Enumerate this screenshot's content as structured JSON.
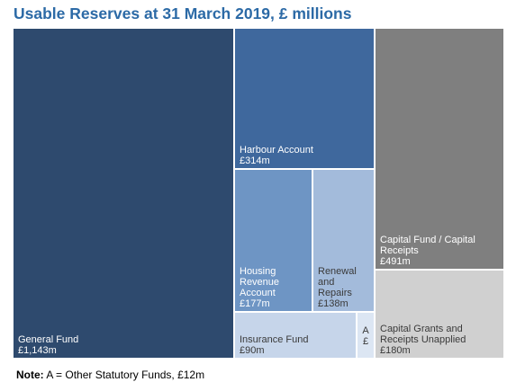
{
  "chart_data": {
    "type": "treemap",
    "title": "Usable Reserves at 31 March 2019, £ millions",
    "units": "£ millions",
    "items": [
      {
        "key": "general",
        "lines": [
          "General Fund",
          "£1,143m"
        ],
        "value": 1143,
        "color": "#2e4a6e",
        "text_color": "#ffffff"
      },
      {
        "key": "harbour",
        "lines": [
          "Harbour Account",
          "£314m"
        ],
        "value": 314,
        "color": "#3f689d",
        "text_color": "#ffffff"
      },
      {
        "key": "hra",
        "lines": [
          "Housing",
          "Revenue",
          "Account",
          "£177m"
        ],
        "value": 177,
        "color": "#6e95c4",
        "text_color": "#ffffff"
      },
      {
        "key": "renewal",
        "lines": [
          "Renewal",
          "and",
          "Repairs",
          "£138m"
        ],
        "value": 138,
        "color": "#a3bbdb",
        "text_color": "#3a3a3a"
      },
      {
        "key": "insurance",
        "lines": [
          "Insurance Fund",
          "£90m"
        ],
        "value": 90,
        "color": "#c6d5ea",
        "text_color": "#3a3a3a"
      },
      {
        "key": "other",
        "lines": [
          "A",
          "£"
        ],
        "value": 12,
        "color": "#dce6f3",
        "text_color": "#3a3a3a"
      },
      {
        "key": "capital",
        "lines": [
          "Capital Fund / Capital",
          "Receipts",
          "£491m"
        ],
        "value": 491,
        "color": "#7f7f7f",
        "text_color": "#ffffff"
      },
      {
        "key": "grants",
        "lines": [
          "Capital Grants and",
          "Receipts Unapplied",
          "£180m"
        ],
        "value": 180,
        "color": "#d0d0d0",
        "text_color": "#3a3a3a"
      }
    ]
  },
  "note": {
    "label": "Note:",
    "text": " A = Other Statutory Funds, £12m"
  }
}
